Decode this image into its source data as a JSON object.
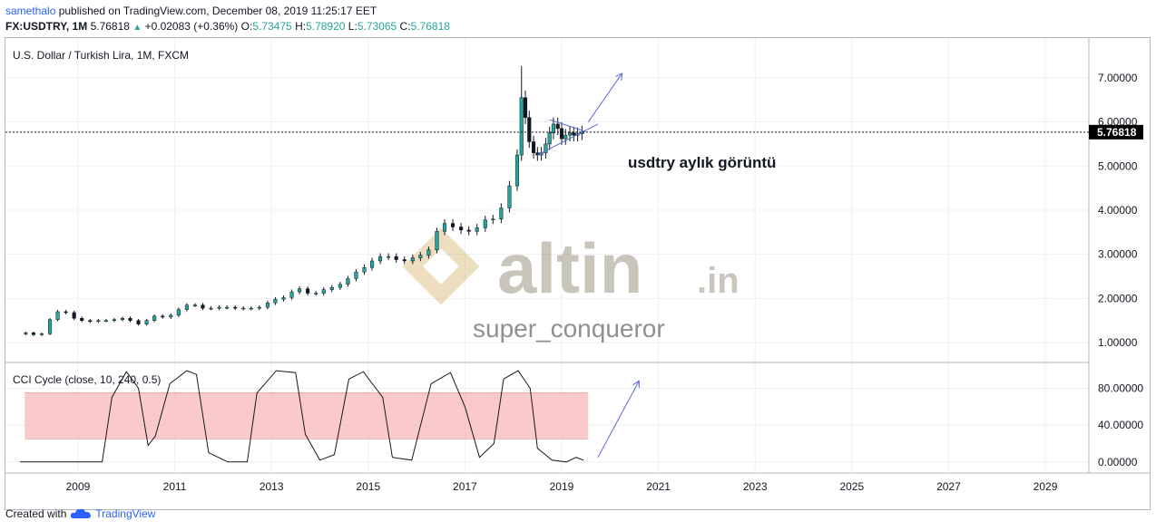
{
  "header": {
    "user": "samethalo",
    "published_text": " published on TradingView.com, December 08, 2019 11:25:17 EET",
    "symbol": "FX:USDTRY, 1M",
    "last": "5.76818",
    "change": "+0.02083 (+0.36%)",
    "o_label": "O:",
    "o": "5.73475",
    "h_label": "H:",
    "h": "5.78920",
    "l_label": "L:",
    "l": "5.73065",
    "c_label": "C:",
    "c": "5.76818"
  },
  "chart_data": [
    {
      "type": "candlestick",
      "title": "U.S. Dollar / Turkish Lira, 1M, FXCM",
      "x_ticks": [
        "2009",
        "2011",
        "2013",
        "2015",
        "2017",
        "2019",
        "2021",
        "2023",
        "2025",
        "2027",
        "2029"
      ],
      "y_ticks": [
        "1.00000",
        "2.00000",
        "3.00000",
        "4.00000",
        "5.00000",
        "6.00000",
        "7.00000"
      ],
      "ylim": [
        0.55,
        7.9
      ],
      "xlim": [
        2008.0,
        2030.4
      ],
      "last_price_label": "5.76818",
      "last_price": 5.76818,
      "annotation": "usdtry aylık görüntü",
      "series": [
        {
          "t": 2008.42,
          "v": 1.22
        },
        {
          "t": 2008.58,
          "v": 1.18
        },
        {
          "t": 2008.75,
          "v": 1.2
        },
        {
          "t": 2008.92,
          "v": 1.52
        },
        {
          "t": 2009.08,
          "v": 1.7
        },
        {
          "t": 2009.25,
          "v": 1.68
        },
        {
          "t": 2009.42,
          "v": 1.55
        },
        {
          "t": 2009.58,
          "v": 1.5
        },
        {
          "t": 2009.75,
          "v": 1.48
        },
        {
          "t": 2009.92,
          "v": 1.5
        },
        {
          "t": 2010.08,
          "v": 1.5
        },
        {
          "t": 2010.25,
          "v": 1.52
        },
        {
          "t": 2010.42,
          "v": 1.55
        },
        {
          "t": 2010.58,
          "v": 1.5
        },
        {
          "t": 2010.75,
          "v": 1.42
        },
        {
          "t": 2010.92,
          "v": 1.5
        },
        {
          "t": 2011.08,
          "v": 1.6
        },
        {
          "t": 2011.25,
          "v": 1.58
        },
        {
          "t": 2011.42,
          "v": 1.62
        },
        {
          "t": 2011.58,
          "v": 1.75
        },
        {
          "t": 2011.75,
          "v": 1.85
        },
        {
          "t": 2011.92,
          "v": 1.85
        },
        {
          "t": 2012.08,
          "v": 1.78
        },
        {
          "t": 2012.25,
          "v": 1.78
        },
        {
          "t": 2012.42,
          "v": 1.8
        },
        {
          "t": 2012.58,
          "v": 1.8
        },
        {
          "t": 2012.75,
          "v": 1.78
        },
        {
          "t": 2012.92,
          "v": 1.78
        },
        {
          "t": 2013.08,
          "v": 1.78
        },
        {
          "t": 2013.25,
          "v": 1.8
        },
        {
          "t": 2013.42,
          "v": 1.9
        },
        {
          "t": 2013.58,
          "v": 1.98
        },
        {
          "t": 2013.75,
          "v": 2.02
        },
        {
          "t": 2013.92,
          "v": 2.15
        },
        {
          "t": 2014.08,
          "v": 2.22
        },
        {
          "t": 2014.25,
          "v": 2.12
        },
        {
          "t": 2014.42,
          "v": 2.12
        },
        {
          "t": 2014.58,
          "v": 2.2
        },
        {
          "t": 2014.75,
          "v": 2.25
        },
        {
          "t": 2014.92,
          "v": 2.32
        },
        {
          "t": 2015.08,
          "v": 2.45
        },
        {
          "t": 2015.25,
          "v": 2.6
        },
        {
          "t": 2015.42,
          "v": 2.7
        },
        {
          "t": 2015.58,
          "v": 2.85
        },
        {
          "t": 2015.75,
          "v": 2.95
        },
        {
          "t": 2015.92,
          "v": 2.95
        },
        {
          "t": 2016.08,
          "v": 2.88
        },
        {
          "t": 2016.25,
          "v": 2.85
        },
        {
          "t": 2016.42,
          "v": 2.92
        },
        {
          "t": 2016.58,
          "v": 2.98
        },
        {
          "t": 2016.75,
          "v": 3.1
        },
        {
          "t": 2016.92,
          "v": 3.52
        },
        {
          "t": 2017.08,
          "v": 3.7
        },
        {
          "t": 2017.25,
          "v": 3.62
        },
        {
          "t": 2017.42,
          "v": 3.55
        },
        {
          "t": 2017.58,
          "v": 3.52
        },
        {
          "t": 2017.75,
          "v": 3.6
        },
        {
          "t": 2017.92,
          "v": 3.78
        },
        {
          "t": 2018.08,
          "v": 3.8
        },
        {
          "t": 2018.25,
          "v": 4.05
        },
        {
          "t": 2018.42,
          "v": 4.55
        },
        {
          "t": 2018.58,
          "v": 5.25
        },
        {
          "t": 2018.67,
          "v": 6.55
        },
        {
          "t": 2018.75,
          "v": 6.1
        },
        {
          "t": 2018.83,
          "v": 5.55
        },
        {
          "t": 2018.92,
          "v": 5.3
        },
        {
          "t": 2019.0,
          "v": 5.25
        },
        {
          "t": 2019.08,
          "v": 5.3
        },
        {
          "t": 2019.17,
          "v": 5.5
        },
        {
          "t": 2019.25,
          "v": 5.75
        },
        {
          "t": 2019.33,
          "v": 5.95
        },
        {
          "t": 2019.42,
          "v": 5.85
        },
        {
          "t": 2019.5,
          "v": 5.62
        },
        {
          "t": 2019.58,
          "v": 5.7
        },
        {
          "t": 2019.67,
          "v": 5.75
        },
        {
          "t": 2019.75,
          "v": 5.7
        },
        {
          "t": 2019.83,
          "v": 5.73
        },
        {
          "t": 2019.92,
          "v": 5.77
        }
      ]
    },
    {
      "type": "line",
      "title": "CCI Cycle (close, 10, 240, 0.5)",
      "y_ticks": [
        "0.00000",
        "40.00000",
        "80.00000"
      ],
      "ylim": [
        -12,
        108
      ],
      "band": [
        25,
        75
      ],
      "series": [
        {
          "t": 2008.3,
          "v": 0
        },
        {
          "t": 2009.5,
          "v": 0
        },
        {
          "t": 2010.0,
          "v": 0
        },
        {
          "t": 2010.2,
          "v": 70
        },
        {
          "t": 2010.5,
          "v": 98
        },
        {
          "t": 2010.75,
          "v": 80
        },
        {
          "t": 2010.95,
          "v": 18
        },
        {
          "t": 2011.1,
          "v": 28
        },
        {
          "t": 2011.4,
          "v": 85
        },
        {
          "t": 2011.75,
          "v": 99
        },
        {
          "t": 2011.95,
          "v": 95
        },
        {
          "t": 2012.2,
          "v": 10
        },
        {
          "t": 2012.6,
          "v": 0
        },
        {
          "t": 2013.0,
          "v": 0
        },
        {
          "t": 2013.2,
          "v": 75
        },
        {
          "t": 2013.6,
          "v": 99
        },
        {
          "t": 2014.0,
          "v": 97
        },
        {
          "t": 2014.2,
          "v": 30
        },
        {
          "t": 2014.5,
          "v": 2
        },
        {
          "t": 2014.8,
          "v": 8
        },
        {
          "t": 2015.1,
          "v": 90
        },
        {
          "t": 2015.4,
          "v": 98
        },
        {
          "t": 2015.8,
          "v": 70
        },
        {
          "t": 2016.0,
          "v": 5
        },
        {
          "t": 2016.4,
          "v": 2
        },
        {
          "t": 2016.8,
          "v": 85
        },
        {
          "t": 2017.2,
          "v": 97
        },
        {
          "t": 2017.5,
          "v": 60
        },
        {
          "t": 2017.8,
          "v": 5
        },
        {
          "t": 2018.1,
          "v": 20
        },
        {
          "t": 2018.3,
          "v": 90
        },
        {
          "t": 2018.6,
          "v": 99
        },
        {
          "t": 2018.85,
          "v": 80
        },
        {
          "t": 2019.0,
          "v": 15
        },
        {
          "t": 2019.3,
          "v": 2
        },
        {
          "t": 2019.6,
          "v": 0
        },
        {
          "t": 2019.8,
          "v": 5
        },
        {
          "t": 2019.95,
          "v": 2
        }
      ]
    }
  ],
  "watermark": {
    "brand_text": "altin",
    "brand_suffix": ".in",
    "user_text": "super_conqueror"
  },
  "footer": {
    "created_with": "Created with",
    "brand": "TradingView"
  },
  "colors": {
    "up": "#26a69a",
    "down": "#131722",
    "accent": "#2962ff",
    "band": "#f8b7b7",
    "price_label_bg": "#000000"
  }
}
